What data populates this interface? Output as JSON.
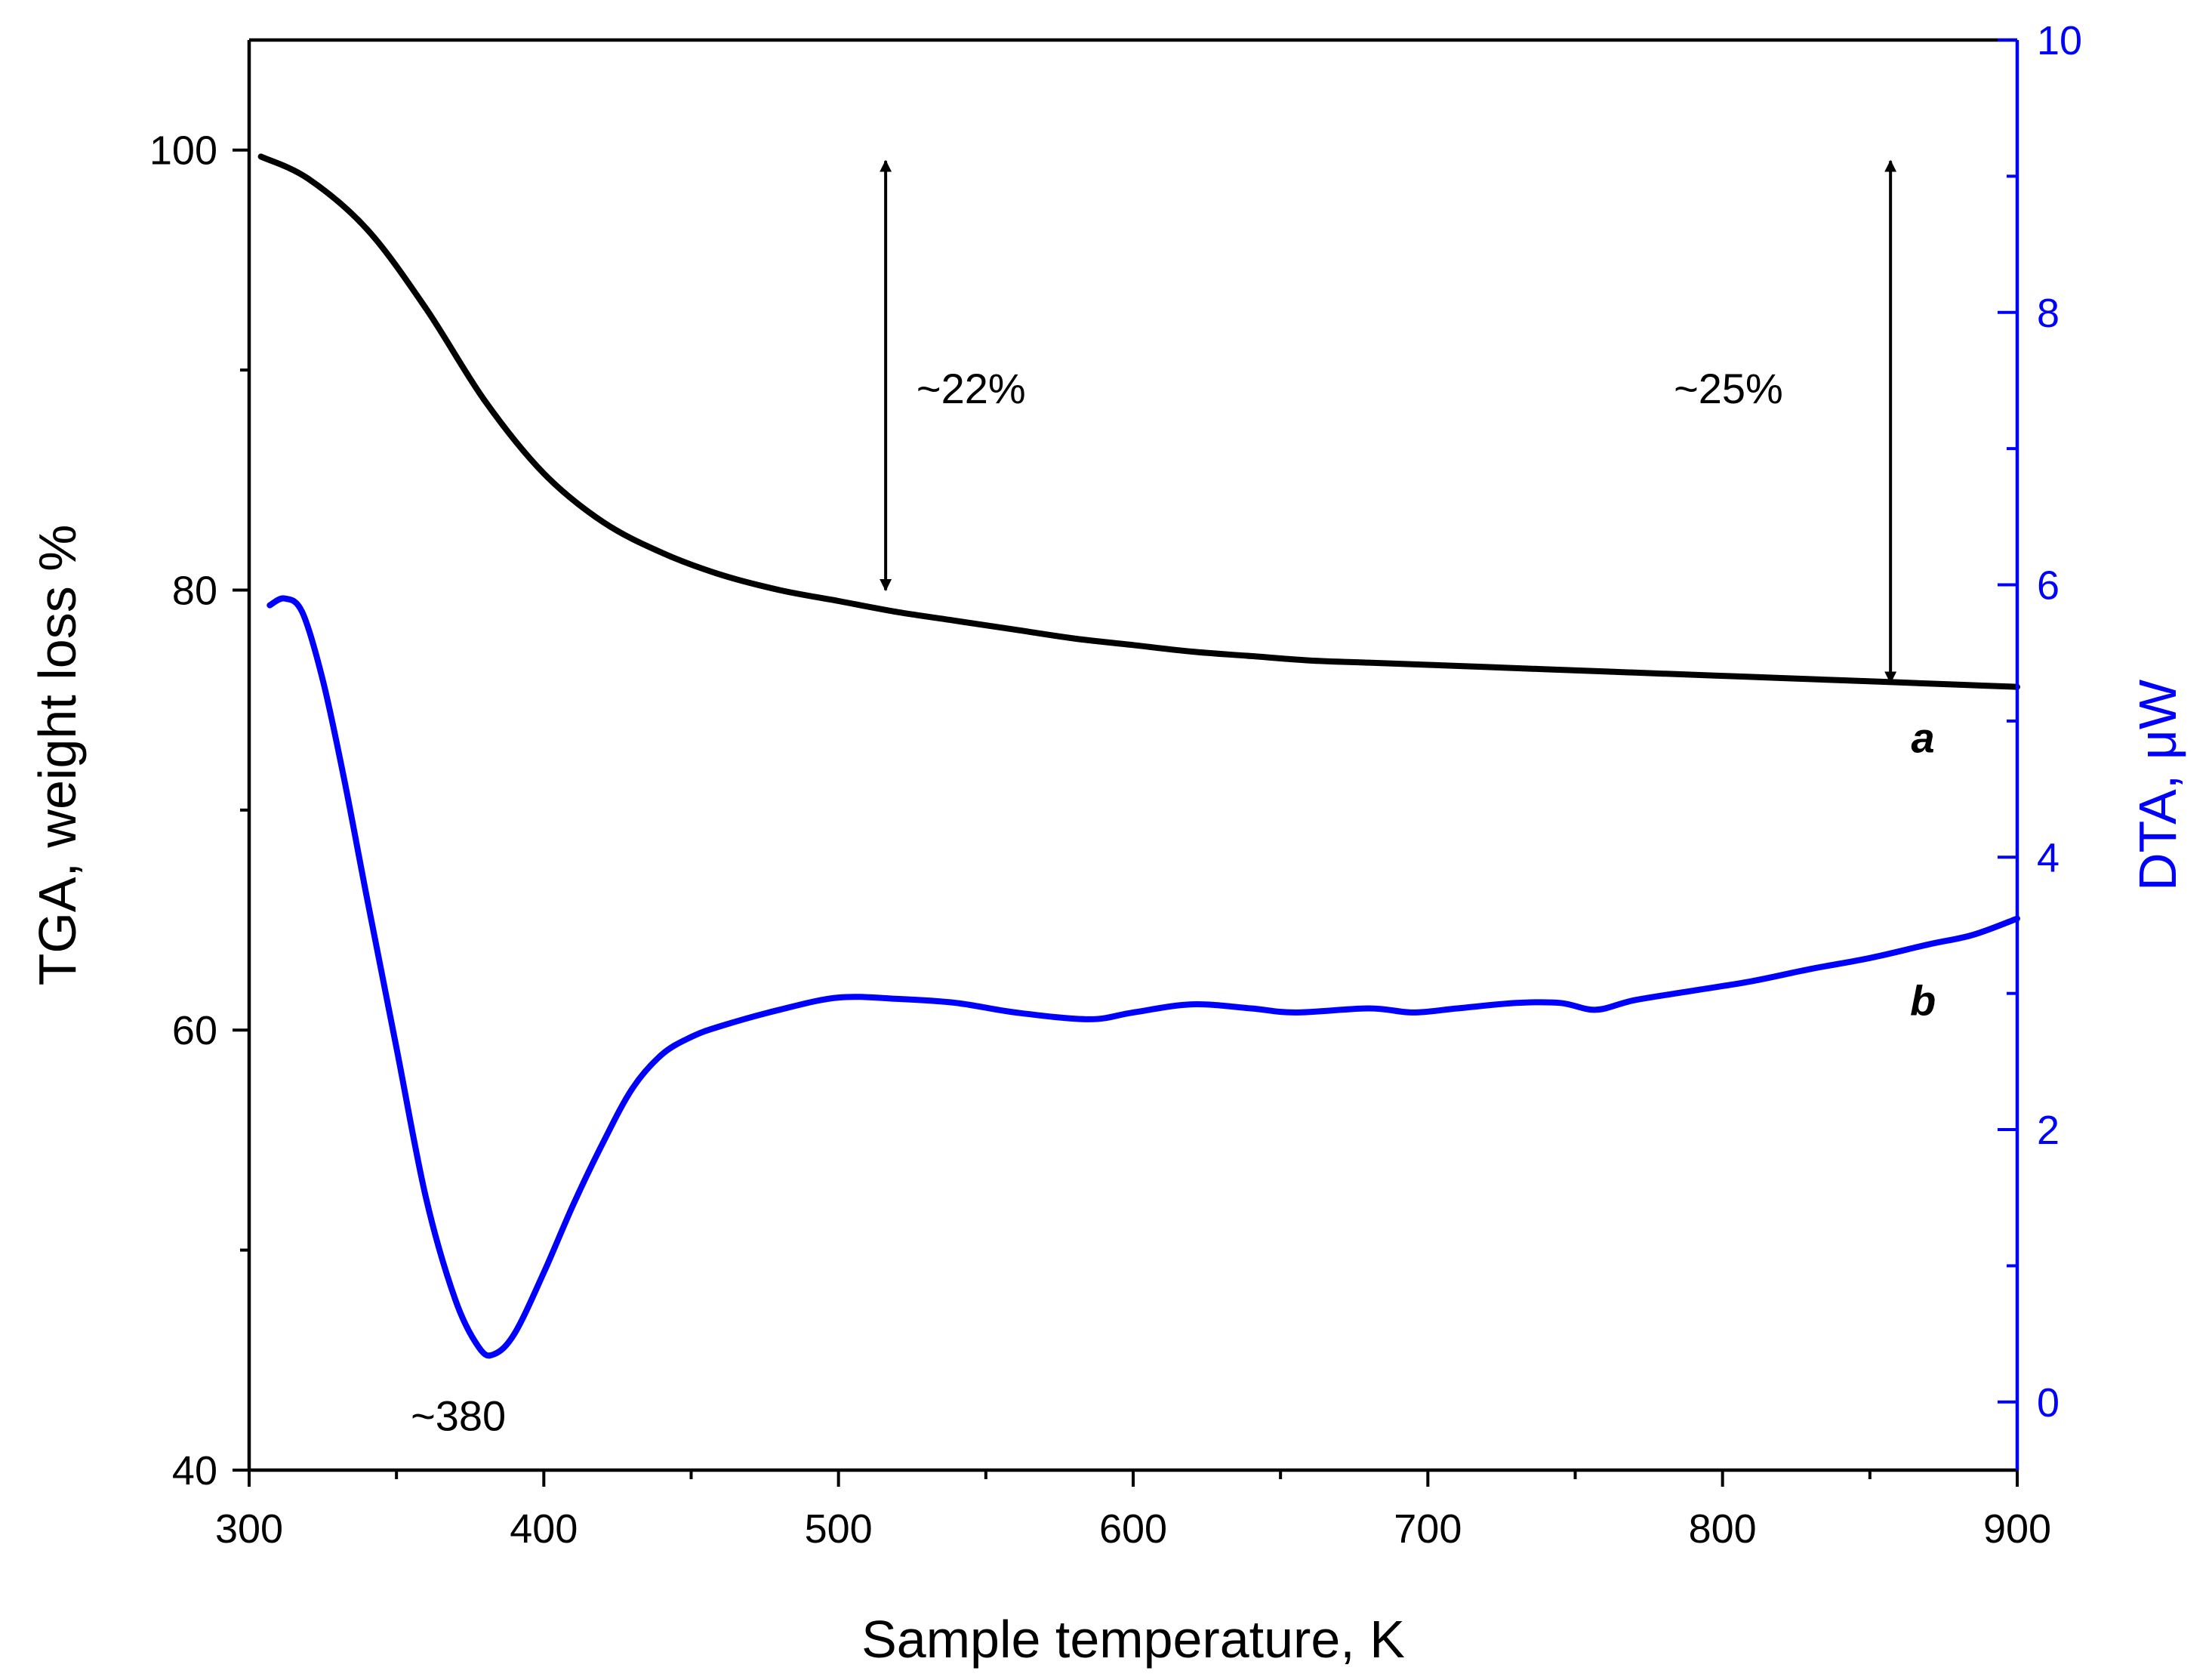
{
  "chart_data": {
    "type": "line",
    "xlabel": "Sample temperature, K",
    "ylabel_left": "TGA, weight loss %",
    "ylabel_right": "DTA, μW",
    "xlim": [
      300,
      900
    ],
    "ylim_left": [
      40,
      105
    ],
    "ylim_right": [
      -0.5,
      10
    ],
    "x_ticks": [
      300,
      400,
      500,
      600,
      700,
      800,
      900
    ],
    "x_tick_labels": [
      "300",
      "400",
      "500",
      "600",
      "700",
      "800",
      "900"
    ],
    "x_minor_ticks": [
      350,
      450,
      550,
      650,
      750,
      850
    ],
    "y_left_ticks": [
      40,
      60,
      80,
      100
    ],
    "y_left_tick_labels": [
      "40",
      "60",
      "80",
      "100"
    ],
    "y_left_minor_ticks": [
      50,
      70,
      90
    ],
    "y_right_ticks": [
      0,
      2,
      4,
      6,
      8,
      10
    ],
    "y_right_tick_labels": [
      "0",
      "2",
      "4",
      "6",
      "8",
      "10"
    ],
    "y_right_minor_ticks": [
      1,
      3,
      5,
      7,
      9
    ],
    "colors": {
      "tga": "#000000",
      "dta": "#0000ff",
      "axes": "#000000",
      "right_axis": "#0000ff"
    },
    "series": [
      {
        "name": "TGA",
        "label": "a",
        "axis": "left",
        "x": [
          304,
          320,
          340,
          360,
          380,
          400,
          420,
          440,
          460,
          480,
          500,
          520,
          540,
          560,
          580,
          600,
          620,
          640,
          660,
          680,
          700,
          720,
          740,
          760,
          780,
          800,
          820,
          840,
          860,
          880,
          900
        ],
        "y": [
          99.7,
          98.7,
          96.4,
          92.8,
          88.6,
          85.3,
          83.1,
          81.7,
          80.7,
          80.0,
          79.5,
          79.0,
          78.6,
          78.2,
          77.8,
          77.5,
          77.2,
          77.0,
          76.8,
          76.7,
          76.6,
          76.5,
          76.4,
          76.3,
          76.2,
          76.1,
          76.0,
          75.9,
          75.8,
          75.7,
          75.6
        ]
      },
      {
        "name": "DTA",
        "label": "b",
        "axis": "right",
        "x": [
          307,
          312,
          318,
          325,
          332,
          340,
          350,
          360,
          370,
          378,
          383,
          390,
          400,
          410,
          420,
          430,
          440,
          450,
          460,
          480,
          500,
          520,
          540,
          560,
          585,
          600,
          620,
          640,
          655,
          680,
          695,
          710,
          730,
          745,
          757,
          770,
          790,
          810,
          830,
          850,
          870,
          885,
          900
        ],
        "y": [
          5.85,
          5.9,
          5.8,
          5.3,
          4.6,
          3.7,
          2.6,
          1.5,
          0.75,
          0.4,
          0.35,
          0.5,
          0.95,
          1.45,
          1.9,
          2.3,
          2.55,
          2.68,
          2.76,
          2.88,
          2.97,
          2.96,
          2.93,
          2.86,
          2.81,
          2.86,
          2.92,
          2.89,
          2.86,
          2.89,
          2.86,
          2.89,
          2.93,
          2.93,
          2.88,
          2.95,
          3.02,
          3.09,
          3.18,
          3.26,
          3.36,
          3.43,
          3.55
        ]
      }
    ],
    "annotations": [
      {
        "text": "~22%",
        "x": 545,
        "y": 88.5,
        "axis": "left",
        "arrow_x": 516,
        "arrow_from": 99.5,
        "arrow_to": 80.0
      },
      {
        "text": "~25%",
        "x": 802,
        "y": 88.5,
        "axis": "left",
        "arrow_x": 857,
        "arrow_from": 99.5,
        "arrow_to": 75.8
      },
      {
        "text": "~380",
        "x": 371,
        "y": 41.8,
        "axis": "left"
      }
    ],
    "curve_labels": [
      {
        "text": "a",
        "x": 868,
        "y": 73.3,
        "axis": "left"
      },
      {
        "text": "b",
        "x": 868,
        "y": 2.95,
        "axis": "right"
      }
    ]
  }
}
